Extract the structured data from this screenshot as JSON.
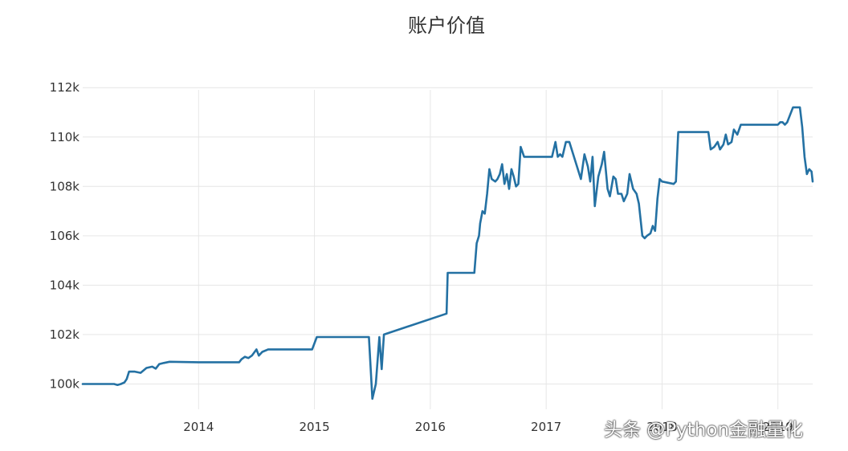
{
  "chart_data": {
    "type": "line",
    "title": "账户价值",
    "xlabel": "",
    "ylabel": "",
    "xlim": [
      2013.0,
      2019.3
    ],
    "ylim": [
      99300,
      112300
    ],
    "x_ticks": [
      2014,
      2015,
      2016,
      2017,
      2018,
      2019
    ],
    "x_tick_labels": [
      "2014",
      "2015",
      "2016",
      "2017",
      "2018",
      "2019"
    ],
    "y_ticks": [
      100000,
      102000,
      104000,
      106000,
      108000,
      110000,
      112000
    ],
    "y_tick_labels": [
      "100k",
      "102k",
      "104k",
      "106k",
      "108k",
      "110k",
      "112k"
    ],
    "grid": true,
    "line_color": "#2471a3",
    "series": [
      {
        "x": [
          2013.0,
          2013.27,
          2013.3,
          2013.33,
          2013.36,
          2013.38,
          2013.4,
          2013.45,
          2013.5,
          2013.55,
          2013.6,
          2013.63,
          2013.66,
          2013.7,
          2013.75,
          2014.0,
          2014.2,
          2014.35,
          2014.37,
          2014.4,
          2014.43,
          2014.46,
          2014.5,
          2014.52,
          2014.55,
          2014.6,
          2014.98,
          2015.02,
          2015.47,
          2015.5,
          2015.53,
          2015.56,
          2015.58,
          2015.6,
          2015.63,
          2016.14,
          2016.15,
          2016.38,
          2016.4,
          2016.42,
          2016.43,
          2016.45,
          2016.47,
          2016.49,
          2016.51,
          2016.53,
          2016.56,
          2016.58,
          2016.6,
          2016.62,
          2016.64,
          2016.66,
          2016.68,
          2016.7,
          2016.72,
          2016.74,
          2016.76,
          2016.78,
          2016.81,
          2016.83,
          2017.05,
          2017.08,
          2017.1,
          2017.12,
          2017.14,
          2017.17,
          2017.2,
          2017.3,
          2017.33,
          2017.36,
          2017.38,
          2017.4,
          2017.42,
          2017.45,
          2017.48,
          2017.5,
          2017.53,
          2017.55,
          2017.58,
          2017.6,
          2017.62,
          2017.65,
          2017.67,
          2017.7,
          2017.72,
          2017.75,
          2017.78,
          2017.8,
          2017.83,
          2017.85,
          2017.87,
          2017.9,
          2017.92,
          2017.94,
          2017.96,
          2017.98,
          2018.0,
          2018.1,
          2018.12,
          2018.14,
          2018.2,
          2018.4,
          2018.42,
          2018.45,
          2018.48,
          2018.5,
          2018.53,
          2018.55,
          2018.57,
          2018.6,
          2018.62,
          2018.65,
          2018.68,
          2018.7,
          2018.98,
          2019.0,
          2019.02,
          2019.04,
          2019.06,
          2019.08,
          2019.13,
          2019.14,
          2019.16,
          2019.18,
          2019.19,
          2019.21,
          2019.23,
          2019.25,
          2019.27,
          2019.29,
          2019.3
        ],
        "y": [
          100000,
          100000,
          99960,
          100000,
          100060,
          100200,
          100500,
          100500,
          100450,
          100650,
          100700,
          100620,
          100800,
          100850,
          100900,
          100880,
          100880,
          100880,
          101000,
          101100,
          101050,
          101150,
          101400,
          101150,
          101300,
          101400,
          101400,
          101900,
          101900,
          99400,
          100000,
          101900,
          100600,
          102000,
          102050,
          102850,
          104500,
          104500,
          105700,
          106000,
          106500,
          107000,
          106900,
          107700,
          108700,
          108300,
          108200,
          108300,
          108500,
          108900,
          108100,
          108500,
          107900,
          108700,
          108400,
          108000,
          108100,
          109600,
          109200,
          109200,
          109200,
          109800,
          109200,
          109300,
          109200,
          109800,
          109800,
          108300,
          109300,
          108800,
          108200,
          109200,
          107200,
          108400,
          108900,
          109400,
          107900,
          107600,
          108400,
          108300,
          107700,
          107700,
          107400,
          107700,
          108500,
          107900,
          107700,
          107300,
          106000,
          105900,
          106000,
          106100,
          106400,
          106200,
          107500,
          108300,
          108200,
          108100,
          108200,
          110200,
          110200,
          110200,
          109500,
          109600,
          109800,
          109500,
          109700,
          110100,
          109700,
          109800,
          110300,
          110100,
          110500,
          110500,
          110500,
          110500,
          110600,
          110600,
          110500,
          110600,
          111200,
          111200,
          111200,
          111200,
          111200,
          110400,
          109200,
          108500,
          108700,
          108600,
          108200
        ]
      }
    ]
  },
  "watermark": "头条 @Python金融量化"
}
